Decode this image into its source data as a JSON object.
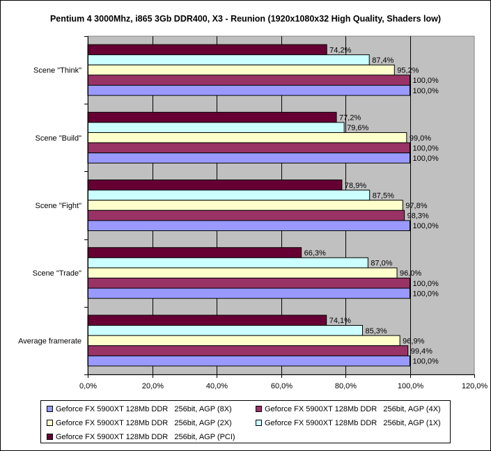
{
  "chart_data": {
    "type": "bar",
    "orientation": "horizontal",
    "title": "Pentium 4 3000Mhz, i865 3Gb DDR400, X3 - Reunion (1920x1080x32 High Quality, Shaders low)",
    "categories": [
      "Scene \"Think\"",
      "Scene \"Build\"",
      "Scene \"Fight\"",
      "Scene \"Trade\"",
      "Average framerate"
    ],
    "series": [
      {
        "name": "Geforce FX 5900XT 128Mb DDR   256bit, AGP (PCI)",
        "color": "#660033",
        "values": [
          74.2,
          77.2,
          78.9,
          66.3,
          74.1
        ],
        "labels": [
          "74,2%",
          "77,2%",
          "78,9%",
          "66,3%",
          "74,1%"
        ]
      },
      {
        "name": "Geforce FX 5900XT 128Mb DDR   256bit, AGP (1X)",
        "color": "#ccffff",
        "values": [
          87.4,
          79.6,
          87.5,
          87.0,
          85.3
        ],
        "labels": [
          "87,4%",
          "79,6%",
          "87,5%",
          "87,0%",
          "85,3%"
        ]
      },
      {
        "name": "Geforce FX 5900XT 128Mb DDR   256bit, AGP (2X)",
        "color": "#ffffcc",
        "values": [
          95.2,
          99.0,
          97.8,
          96.0,
          96.9
        ],
        "labels": [
          "95,2%",
          "99,0%",
          "97,8%",
          "96,0%",
          "96,9%"
        ]
      },
      {
        "name": "Geforce FX 5900XT 128Mb DDR   256bit, AGP (4X)",
        "color": "#993366",
        "values": [
          100.0,
          100.0,
          98.3,
          100.0,
          99.4
        ],
        "labels": [
          "100,0%",
          "100,0%",
          "98,3%",
          "100,0%",
          "99,4%"
        ]
      },
      {
        "name": "Geforce FX 5900XT 128Mb DDR   256bit, AGP (8X)",
        "color": "#9999ff",
        "values": [
          100.0,
          100.0,
          100.0,
          100.0,
          100.0
        ],
        "labels": [
          "100,0%",
          "100,0%",
          "100,0%",
          "100,0%",
          "100,0%"
        ]
      }
    ],
    "xlim": [
      0,
      120
    ],
    "xticks": [
      "0,0%",
      "20,0%",
      "40,0%",
      "60,0%",
      "80,0%",
      "100,0%",
      "120,0%"
    ],
    "plot_background": "#c0c0c0",
    "grid": true,
    "legend_position": "bottom",
    "legend_order": [
      "Geforce FX 5900XT 128Mb DDR   256bit, AGP (8X)",
      "Geforce FX 5900XT 128Mb DDR   256bit, AGP (4X)",
      "Geforce FX 5900XT 128Mb DDR   256bit, AGP (2X)",
      "Geforce FX 5900XT 128Mb DDR   256bit, AGP (1X)",
      "Geforce FX 5900XT 128Mb DDR   256bit, AGP (PCI)"
    ]
  }
}
